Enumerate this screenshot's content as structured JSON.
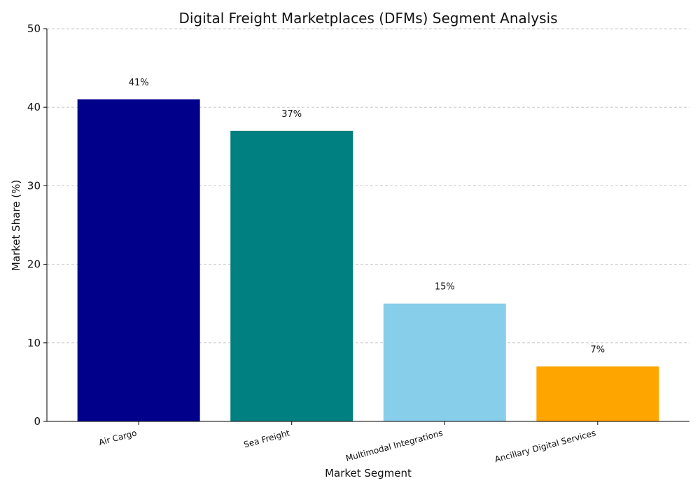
{
  "chart_data": {
    "type": "bar",
    "title": "Digital Freight Marketplaces (DFMs) Segment Analysis",
    "xlabel": "Market Segment",
    "ylabel": "Market Share (%)",
    "categories": [
      "Air Cargo",
      "Sea Freight",
      "Multimodal Integrations",
      "Ancillary Digital Services"
    ],
    "values": [
      41,
      37,
      15,
      7
    ],
    "data_labels": [
      "41%",
      "37%",
      "15%",
      "7%"
    ],
    "colors": [
      "#00008b",
      "#008080",
      "#87ceeb",
      "#ffa500"
    ],
    "ylim": [
      0,
      50
    ],
    "yticks": [
      0,
      10,
      20,
      30,
      40,
      50
    ],
    "grid": "horizontal-dashed",
    "legend": "none"
  }
}
